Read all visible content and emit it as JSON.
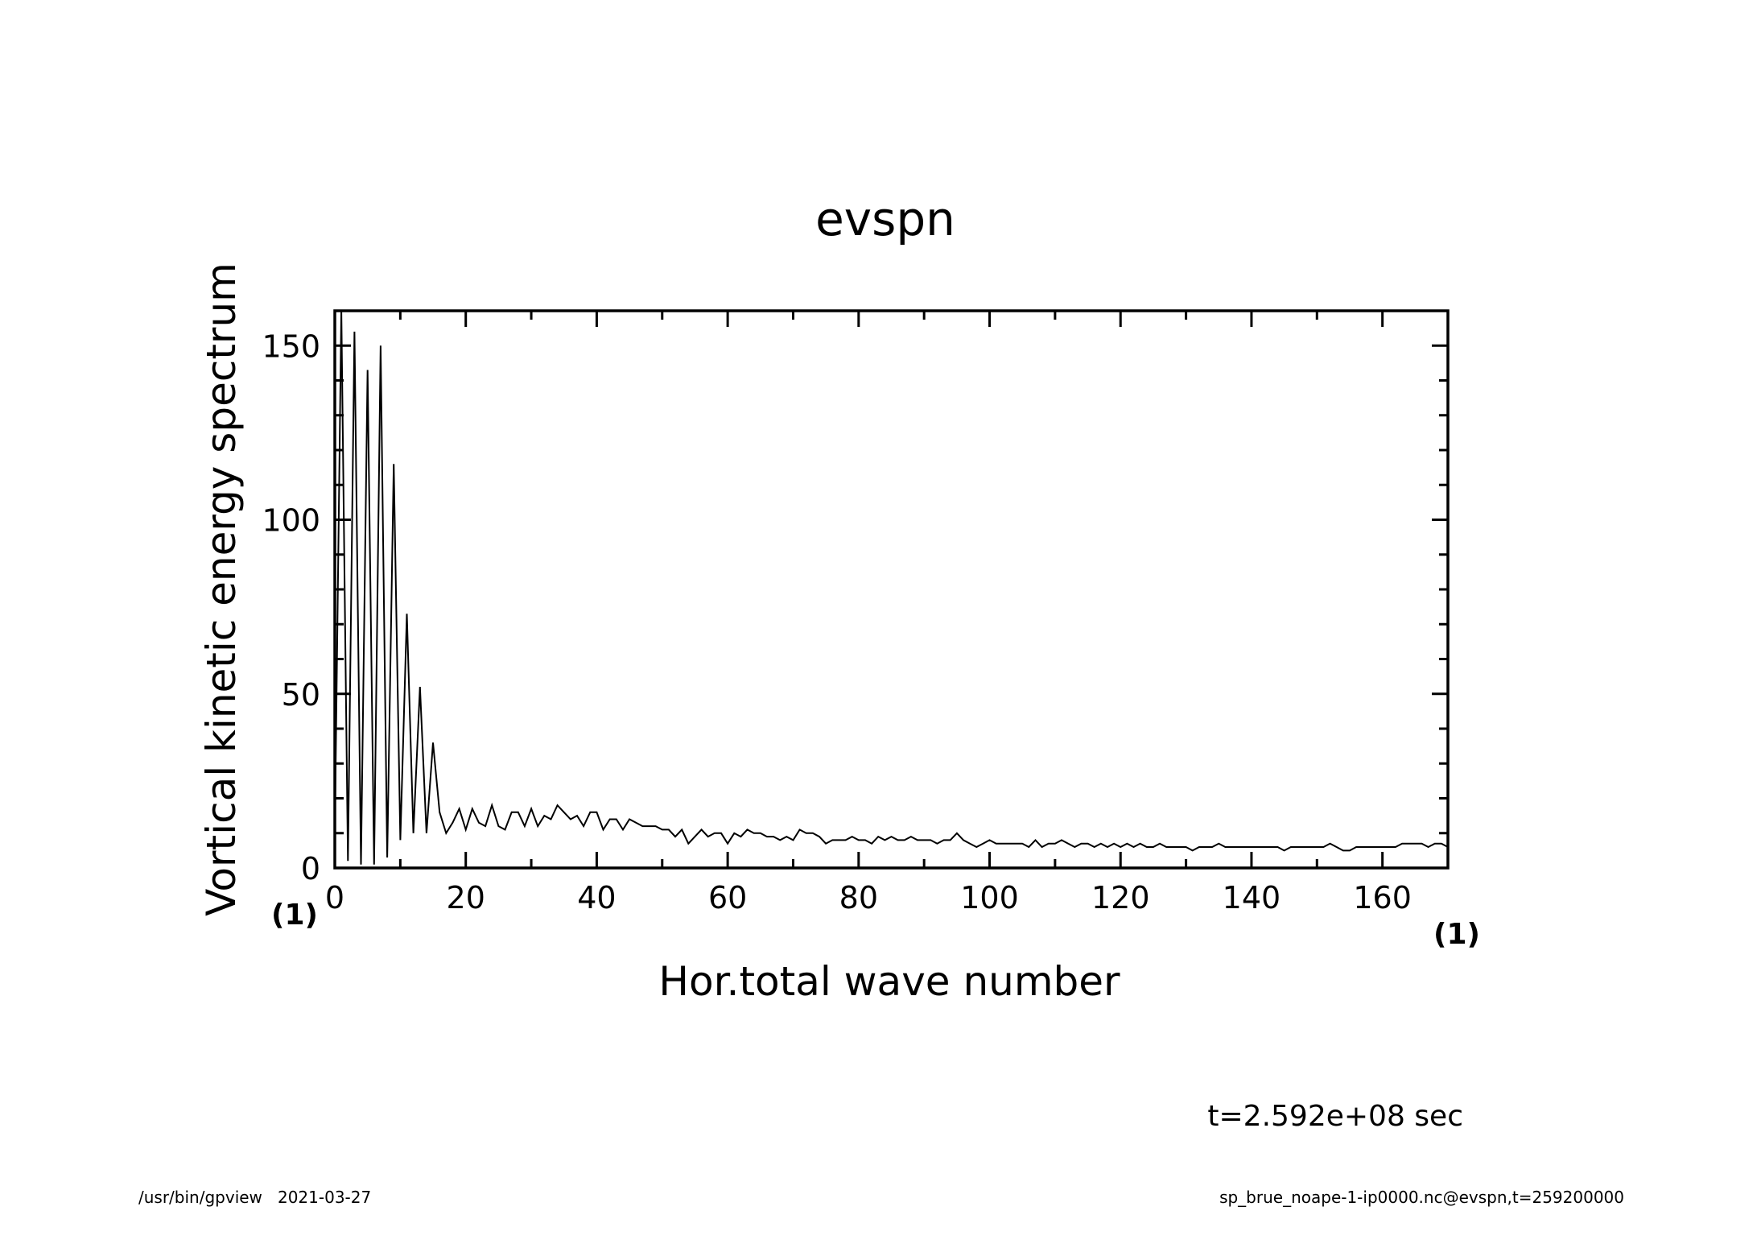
{
  "chart_data": {
    "type": "line",
    "title": "evspn",
    "xlabel": "Hor.total wave number",
    "ylabel": "Vortical kinetic energy spectrum",
    "x_unit": "(1)",
    "y_unit": "(1)",
    "xlim": [
      0,
      170
    ],
    "ylim": [
      0,
      160
    ],
    "x_ticks": [
      "0",
      "20",
      "40",
      "60",
      "80",
      "100",
      "120",
      "140",
      "160"
    ],
    "y_ticks": [
      "0",
      "50",
      "100",
      "150"
    ],
    "grid": false,
    "series": [
      {
        "x": [
          0,
          1,
          2,
          3,
          4,
          5,
          6,
          7,
          8,
          9,
          10,
          11,
          12,
          13,
          14,
          15,
          16,
          17,
          18,
          19,
          20,
          21,
          22,
          23,
          24,
          25,
          26,
          27,
          28,
          29,
          30,
          31,
          32,
          33,
          34,
          35,
          36,
          37,
          38,
          39,
          40,
          41,
          42,
          43,
          44,
          45,
          46,
          47,
          48,
          49,
          50,
          51,
          52,
          53,
          54,
          55,
          56,
          57,
          58,
          59,
          60,
          61,
          62,
          63,
          64,
          65,
          66,
          67,
          68,
          69,
          70,
          71,
          72,
          73,
          74,
          75,
          76,
          77,
          78,
          79,
          80,
          81,
          82,
          83,
          84,
          85,
          86,
          87,
          88,
          89,
          90,
          91,
          92,
          93,
          94,
          95,
          96,
          97,
          98,
          99,
          100,
          101,
          102,
          103,
          104,
          105,
          106,
          107,
          108,
          109,
          110,
          111,
          112,
          113,
          114,
          115,
          116,
          117,
          118,
          119,
          120,
          121,
          122,
          123,
          124,
          125,
          126,
          127,
          128,
          129,
          130,
          131,
          132,
          133,
          134,
          135,
          136,
          137,
          138,
          139,
          140,
          141,
          142,
          143,
          144,
          145,
          146,
          147,
          148,
          149,
          150,
          151,
          152,
          153,
          154,
          155,
          156,
          157,
          158,
          159,
          160,
          161,
          162,
          163,
          164,
          165,
          166,
          167,
          168,
          169,
          170
        ],
        "y": [
          10,
          160,
          2,
          154,
          1,
          143,
          1,
          150,
          3,
          116,
          8,
          73,
          10,
          52,
          10,
          36,
          16,
          10,
          13,
          17,
          11,
          17,
          13,
          12,
          18,
          12,
          11,
          16,
          16,
          12,
          17,
          12,
          15,
          14,
          18,
          16,
          14,
          15,
          12,
          16,
          16,
          11,
          14,
          14,
          11,
          14,
          13,
          12,
          12,
          12,
          11,
          11,
          9,
          11,
          7,
          9,
          11,
          9,
          10,
          10,
          7,
          10,
          9,
          11,
          10,
          10,
          9,
          9,
          8,
          9,
          8,
          11,
          10,
          10,
          9,
          7,
          8,
          8,
          8,
          9,
          8,
          8,
          7,
          9,
          8,
          9,
          8,
          8,
          9,
          8,
          8,
          8,
          7,
          8,
          8,
          10,
          8,
          7,
          6,
          7,
          8,
          7,
          7,
          7,
          7,
          7,
          6,
          8,
          6,
          7,
          7,
          8,
          7,
          6,
          7,
          7,
          6,
          7,
          6,
          7,
          6,
          7,
          6,
          7,
          6,
          6,
          7,
          6,
          6,
          6,
          6,
          5,
          6,
          6,
          6,
          7,
          6,
          6,
          6,
          6,
          6,
          6,
          6,
          6,
          6,
          5,
          6,
          6,
          6,
          6,
          6,
          6,
          7,
          6,
          5,
          5,
          6,
          6,
          6,
          6,
          6,
          6,
          6,
          7,
          7,
          7,
          7,
          6,
          7,
          7,
          6
        ]
      }
    ]
  },
  "annotations": {
    "time_label": "t=2.592e+08 sec",
    "footer_left": "/usr/bin/gpview   2021-03-27",
    "footer_right": "sp_brue_noape-1-ip0000.nc@evspn,t=259200000"
  }
}
